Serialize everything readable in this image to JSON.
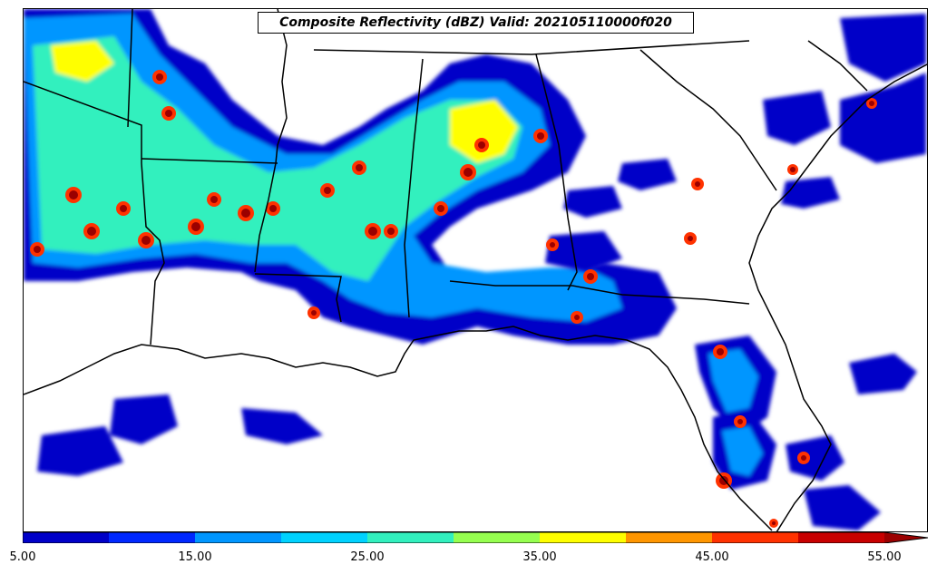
{
  "title": "Composite Reflectivity (dBZ) Valid: 202105110000f020",
  "colorbar": {
    "colors": [
      "#0000c8",
      "#0028ff",
      "#0096ff",
      "#00d2ff",
      "#32f0be",
      "#96ff50",
      "#ffff00",
      "#ff9600",
      "#ff3200",
      "#c80000",
      "#9b0000"
    ],
    "tick_labels": [
      "5.00",
      "15.00",
      "25.00",
      "35.00",
      "45.00",
      "55.00"
    ],
    "min": 5,
    "max": 60,
    "extend": "max"
  },
  "map": {
    "region": "Southeastern United States and northern Gulf of Mexico",
    "projection": "Lambert conformal",
    "boundaries": [
      "coastlines",
      "state borders"
    ],
    "variable": "composite reflectivity",
    "units": "dBZ"
  }
}
